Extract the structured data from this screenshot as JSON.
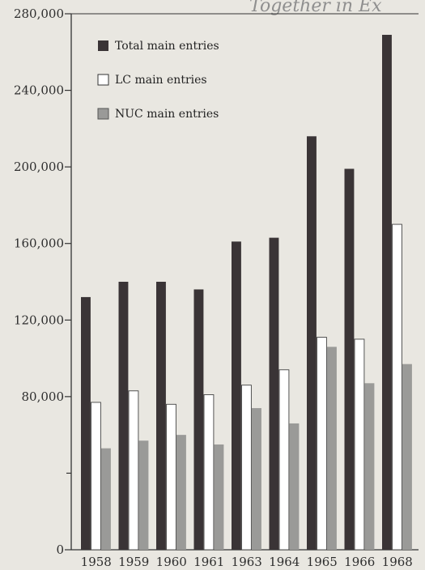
{
  "header": {
    "text": "Together in Ex"
  },
  "chart_data": {
    "type": "bar",
    "title": "",
    "xlabel": "",
    "ylabel": "",
    "categories": [
      "1958",
      "1959",
      "1960",
      "1961",
      "1963",
      "1964",
      "1965",
      "1966",
      "1968"
    ],
    "series": [
      {
        "name": "Total main entries",
        "color": "#3a3436",
        "values": [
          132000,
          140000,
          140000,
          136000,
          161000,
          163000,
          216000,
          199000,
          269000
        ]
      },
      {
        "name": "LC main entries",
        "color": "#ffffff",
        "values": [
          77000,
          83000,
          76000,
          81000,
          86000,
          94000,
          111000,
          110000,
          170000
        ]
      },
      {
        "name": "NUC main entries",
        "color": "#9a9a98",
        "values": [
          53000,
          57000,
          60000,
          55000,
          74000,
          66000,
          106000,
          87000,
          97000
        ]
      }
    ],
    "yticks": [
      "280,000",
      "240,000",
      "200,000",
      "160,000",
      "120,000",
      "80,000",
      "0"
    ],
    "ytick_values": [
      280000,
      240000,
      200000,
      160000,
      120000,
      80000,
      0
    ],
    "minor_ticks": [
      40000
    ],
    "ylim": [
      0,
      280000
    ],
    "grid": false,
    "legend_position": "top-left"
  }
}
